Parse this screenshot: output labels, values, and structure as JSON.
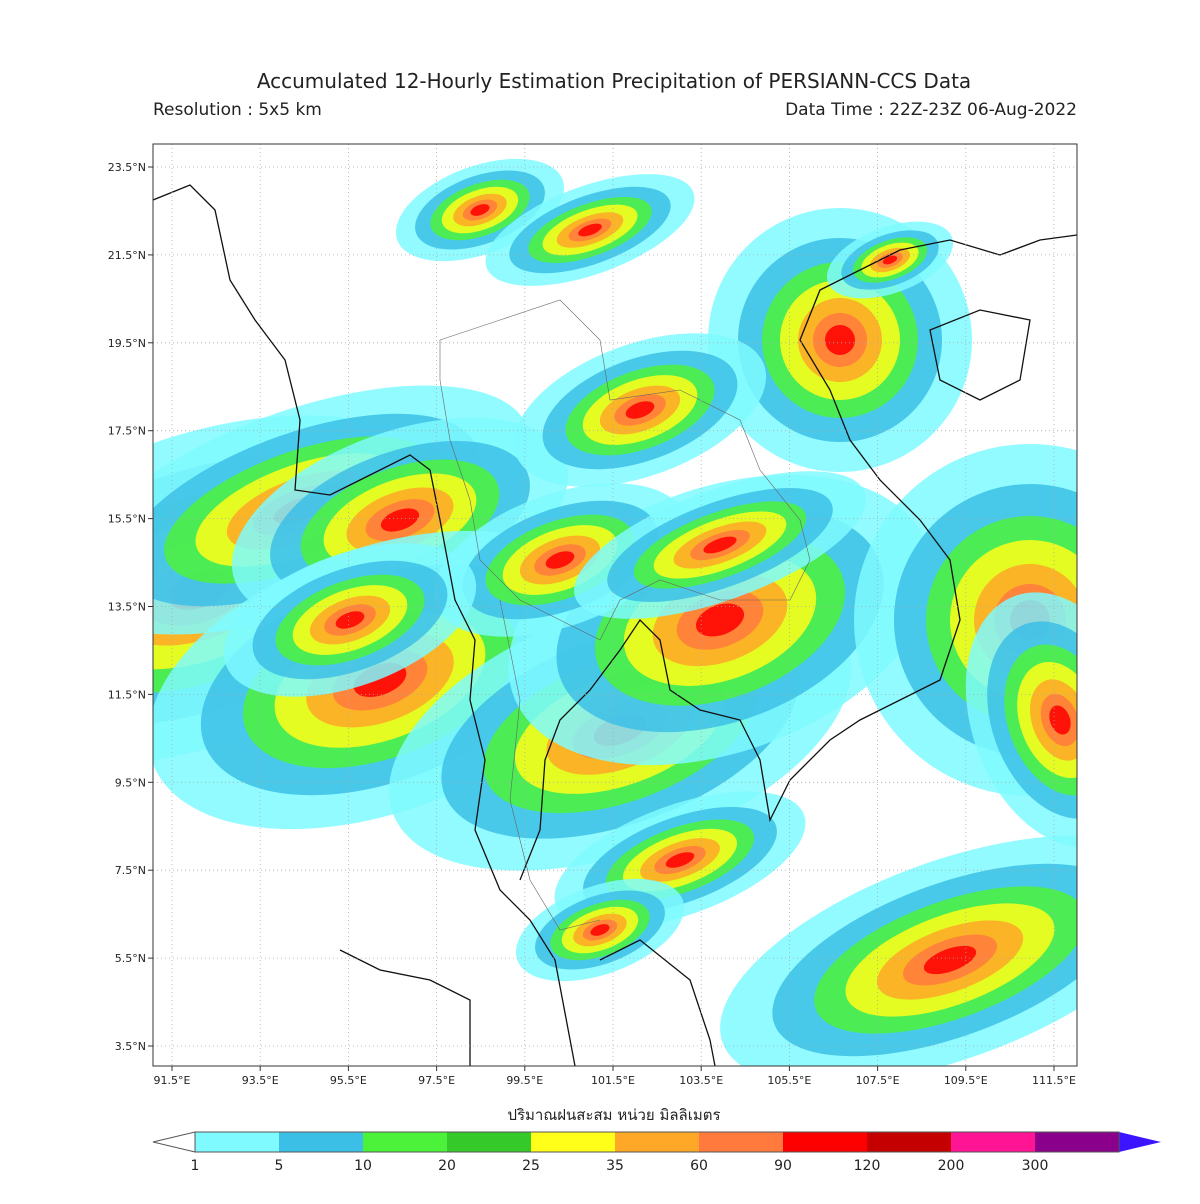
{
  "header": {
    "title": "Accumulated 12-Hourly Estimation Precipitation of PERSIANN-CCS Data",
    "resolution": "Resolution : 5x5 km",
    "data_time": "Data Time : 22Z-23Z 06-Aug-2022"
  },
  "map": {
    "lat_labels": [
      "23.5°N",
      "21.5°N",
      "19.5°N",
      "17.5°N",
      "15.5°N",
      "13.5°N",
      "11.5°N",
      "9.5°N",
      "7.5°N",
      "5.5°N",
      "3.5°N"
    ],
    "lon_labels": [
      "91.5°E",
      "93.5°E",
      "95.5°E",
      "97.5°E",
      "99.5°E",
      "101.5°E",
      "103.5°E",
      "105.5°E",
      "107.5°E",
      "109.5°E",
      "111.5°E"
    ],
    "grid": true
  },
  "colorbar": {
    "title": "ปริมาณฝนสะสม หน่วย มิลลิเมตร",
    "levels": [
      1,
      5,
      10,
      20,
      25,
      35,
      60,
      90,
      120,
      200,
      300
    ],
    "colors": [
      "#7ffaff",
      "#3cbfe6",
      "#4cf23a",
      "#35c92a",
      "#ffff1a",
      "#ffa726",
      "#ff7a3c",
      "#ff0000",
      "#c40000",
      "#ff1493",
      "#8b008b"
    ],
    "under_color": "#ffffff",
    "over_color": "#3c14ff"
  }
}
